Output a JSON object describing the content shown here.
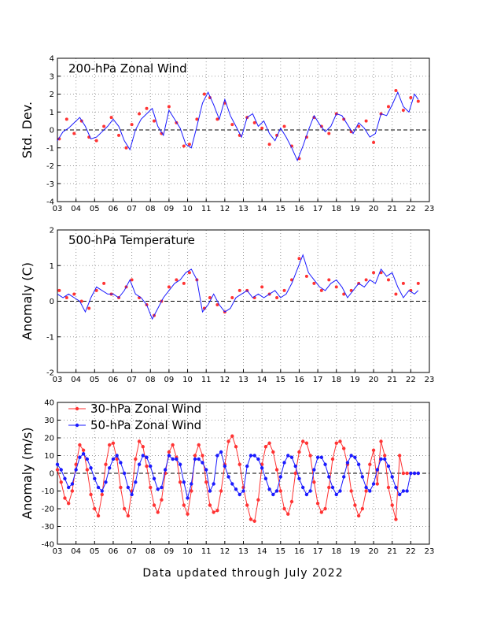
{
  "footer": "Data updated through July 2022",
  "chart_data": [
    {
      "type": "scatter",
      "title": "200-hPa Zonal Wind",
      "ylabel": "Std. Dev.",
      "xlim": [
        2003,
        2023
      ],
      "ylim": [
        -4,
        4
      ],
      "xticks": [
        "03",
        "04",
        "05",
        "06",
        "07",
        "08",
        "09",
        "10",
        "11",
        "12",
        "13",
        "14",
        "15",
        "16",
        "17",
        "18",
        "19",
        "20",
        "21",
        "22",
        "23"
      ],
      "yticks": [
        -4,
        -3,
        -2,
        -1,
        0,
        1,
        2,
        3,
        4
      ],
      "grid": true,
      "zero_line": "dashed",
      "series": [
        {
          "kind": "points",
          "color": "#ff3333",
          "x": [
            2003.1,
            2003.5,
            2003.9,
            2004.3,
            2004.7,
            2005.1,
            2005.5,
            2005.9,
            2006.3,
            2006.7,
            2007.0,
            2007.4,
            2007.8,
            2008.2,
            2008.6,
            2009.0,
            2009.4,
            2009.8,
            2010.1,
            2010.5,
            2010.9,
            2011.2,
            2011.6,
            2012.0,
            2012.4,
            2012.8,
            2013.2,
            2013.6,
            2014.0,
            2014.4,
            2014.8,
            2015.2,
            2015.6,
            2016.0,
            2016.4,
            2016.8,
            2017.2,
            2017.6,
            2018.0,
            2018.4,
            2018.8,
            2019.2,
            2019.6,
            2020.0,
            2020.4,
            2020.8,
            2021.2,
            2021.6,
            2022.0,
            2022.4
          ],
          "y": [
            -0.5,
            0.6,
            -0.2,
            0.5,
            -0.4,
            -0.6,
            0.2,
            0.7,
            -0.3,
            -1.0,
            0.3,
            0.9,
            1.2,
            0.5,
            -0.2,
            1.3,
            0.4,
            -0.9,
            -0.8,
            0.6,
            2.0,
            1.8,
            0.6,
            1.5,
            0.3,
            -0.3,
            0.7,
            0.4,
            0.1,
            -0.8,
            -0.3,
            0.2,
            -0.9,
            -1.6,
            -0.4,
            0.7,
            0.2,
            -0.2,
            0.9,
            0.6,
            -0.1,
            0.2,
            0.5,
            -0.7,
            0.9,
            1.3,
            2.2,
            1.1,
            1.8,
            1.6
          ]
        },
        {
          "kind": "line",
          "color": "#1a1aff",
          "x": [
            2003.0,
            2003.3,
            2003.6,
            2003.9,
            2004.2,
            2004.5,
            2004.8,
            2005.1,
            2005.4,
            2005.7,
            2006.0,
            2006.3,
            2006.6,
            2006.9,
            2007.2,
            2007.5,
            2007.8,
            2008.1,
            2008.4,
            2008.7,
            2009.0,
            2009.3,
            2009.6,
            2009.9,
            2010.2,
            2010.5,
            2010.8,
            2011.1,
            2011.4,
            2011.7,
            2012.0,
            2012.3,
            2012.6,
            2012.9,
            2013.2,
            2013.5,
            2013.8,
            2014.1,
            2014.4,
            2014.7,
            2015.0,
            2015.3,
            2015.6,
            2015.9,
            2016.2,
            2016.5,
            2016.8,
            2017.1,
            2017.4,
            2017.7,
            2018.0,
            2018.3,
            2018.6,
            2018.9,
            2019.2,
            2019.5,
            2019.8,
            2020.1,
            2020.4,
            2020.7,
            2021.0,
            2021.3,
            2021.6,
            2021.9,
            2022.2,
            2022.4
          ],
          "y": [
            -0.6,
            -0.1,
            0.1,
            0.4,
            0.7,
            0.2,
            -0.5,
            -0.4,
            -0.1,
            0.2,
            0.6,
            0.2,
            -0.6,
            -1.1,
            0.0,
            0.6,
            0.9,
            1.2,
            0.2,
            -0.3,
            1.1,
            0.6,
            0.1,
            -0.8,
            -1.0,
            0.2,
            1.5,
            2.1,
            1.4,
            0.6,
            1.7,
            0.8,
            0.2,
            -0.4,
            0.7,
            0.9,
            0.2,
            0.5,
            -0.2,
            -0.6,
            0.1,
            -0.4,
            -1.0,
            -1.7,
            -0.9,
            0.0,
            0.8,
            0.3,
            -0.1,
            0.2,
            0.9,
            0.8,
            0.3,
            -0.2,
            0.4,
            0.1,
            -0.4,
            -0.2,
            0.9,
            0.8,
            1.4,
            2.1,
            1.3,
            1.0,
            2.0,
            1.7
          ]
        }
      ]
    },
    {
      "type": "scatter",
      "title": "500-hPa Temperature",
      "ylabel": "Anomaly (C)",
      "xlim": [
        2003,
        2023
      ],
      "ylim": [
        -2,
        2
      ],
      "xticks": [
        "03",
        "04",
        "05",
        "06",
        "07",
        "08",
        "09",
        "10",
        "11",
        "12",
        "13",
        "14",
        "15",
        "16",
        "17",
        "18",
        "19",
        "20",
        "21",
        "22",
        "23"
      ],
      "yticks": [
        -2,
        -1,
        0,
        1,
        2
      ],
      "grid": true,
      "zero_line": "dashed",
      "series": [
        {
          "kind": "points",
          "color": "#ff3333",
          "x": [
            2003.1,
            2003.5,
            2003.9,
            2004.3,
            2004.7,
            2005.1,
            2005.5,
            2005.9,
            2006.3,
            2006.7,
            2007.0,
            2007.4,
            2007.8,
            2008.2,
            2008.6,
            2009.0,
            2009.4,
            2009.8,
            2010.1,
            2010.5,
            2010.9,
            2011.2,
            2011.6,
            2012.0,
            2012.4,
            2012.8,
            2013.2,
            2013.6,
            2014.0,
            2014.4,
            2014.8,
            2015.2,
            2015.6,
            2016.0,
            2016.4,
            2016.8,
            2017.2,
            2017.6,
            2018.0,
            2018.4,
            2018.8,
            2019.2,
            2019.6,
            2020.0,
            2020.4,
            2020.8,
            2021.2,
            2021.6,
            2022.0,
            2022.4
          ],
          "y": [
            0.3,
            0.1,
            0.2,
            0.0,
            -0.2,
            0.3,
            0.5,
            0.2,
            0.1,
            0.4,
            0.6,
            0.1,
            -0.1,
            -0.4,
            0.0,
            0.4,
            0.6,
            0.5,
            0.8,
            0.6,
            -0.2,
            0.1,
            -0.1,
            -0.3,
            0.1,
            0.3,
            0.3,
            0.1,
            0.4,
            0.2,
            0.1,
            0.3,
            0.6,
            1.2,
            0.7,
            0.5,
            0.3,
            0.6,
            0.4,
            0.2,
            0.3,
            0.5,
            0.6,
            0.8,
            0.8,
            0.6,
            0.2,
            0.5,
            0.3,
            0.5
          ]
        },
        {
          "kind": "line",
          "color": "#1a1aff",
          "x": [
            2003.0,
            2003.3,
            2003.6,
            2003.9,
            2004.2,
            2004.5,
            2004.8,
            2005.1,
            2005.4,
            2005.7,
            2006.0,
            2006.3,
            2006.6,
            2006.9,
            2007.2,
            2007.5,
            2007.8,
            2008.1,
            2008.4,
            2008.7,
            2009.0,
            2009.3,
            2009.6,
            2009.9,
            2010.2,
            2010.5,
            2010.8,
            2011.1,
            2011.4,
            2011.7,
            2012.0,
            2012.3,
            2012.6,
            2012.9,
            2013.2,
            2013.5,
            2013.8,
            2014.1,
            2014.4,
            2014.7,
            2015.0,
            2015.3,
            2015.6,
            2015.9,
            2016.2,
            2016.5,
            2016.8,
            2017.1,
            2017.4,
            2017.7,
            2018.0,
            2018.3,
            2018.6,
            2018.9,
            2019.2,
            2019.5,
            2019.8,
            2020.1,
            2020.4,
            2020.7,
            2021.0,
            2021.3,
            2021.6,
            2021.9,
            2022.2,
            2022.4
          ],
          "y": [
            0.2,
            0.1,
            0.2,
            0.1,
            0.0,
            -0.3,
            0.1,
            0.4,
            0.3,
            0.2,
            0.2,
            0.1,
            0.3,
            0.6,
            0.2,
            0.1,
            -0.1,
            -0.5,
            -0.2,
            0.1,
            0.3,
            0.5,
            0.6,
            0.8,
            0.9,
            0.6,
            -0.3,
            -0.1,
            0.2,
            -0.1,
            -0.3,
            -0.2,
            0.1,
            0.2,
            0.3,
            0.1,
            0.2,
            0.1,
            0.2,
            0.3,
            0.1,
            0.2,
            0.5,
            0.9,
            1.3,
            0.8,
            0.6,
            0.4,
            0.3,
            0.5,
            0.6,
            0.4,
            0.1,
            0.3,
            0.5,
            0.4,
            0.6,
            0.5,
            0.9,
            0.7,
            0.8,
            0.4,
            0.1,
            0.3,
            0.2,
            0.3
          ]
        }
      ]
    },
    {
      "type": "line",
      "ylabel": "Anomaly (m/s)",
      "xlim": [
        2003,
        2023
      ],
      "ylim": [
        -40,
        40
      ],
      "xticks": [
        "03",
        "04",
        "05",
        "06",
        "07",
        "08",
        "09",
        "10",
        "11",
        "12",
        "13",
        "14",
        "15",
        "16",
        "17",
        "18",
        "19",
        "20",
        "21",
        "22",
        "23"
      ],
      "yticks": [
        -40,
        -30,
        -20,
        -10,
        0,
        10,
        20,
        30,
        40
      ],
      "grid": true,
      "zero_line": "dashed",
      "legend": "top-left",
      "series": [
        {
          "name": "30-hPa Zonal Wind",
          "color": "#ff3333",
          "x": [
            2003.0,
            2003.2,
            2003.4,
            2003.6,
            2003.8,
            2004.0,
            2004.2,
            2004.4,
            2004.6,
            2004.8,
            2005.0,
            2005.2,
            2005.4,
            2005.6,
            2005.8,
            2006.0,
            2006.2,
            2006.4,
            2006.6,
            2006.8,
            2007.0,
            2007.2,
            2007.4,
            2007.6,
            2007.8,
            2008.0,
            2008.2,
            2008.4,
            2008.6,
            2008.8,
            2009.0,
            2009.2,
            2009.4,
            2009.6,
            2009.8,
            2010.0,
            2010.2,
            2010.4,
            2010.6,
            2010.8,
            2011.0,
            2011.2,
            2011.4,
            2011.6,
            2011.8,
            2012.0,
            2012.2,
            2012.4,
            2012.6,
            2012.8,
            2013.0,
            2013.2,
            2013.4,
            2013.6,
            2013.8,
            2014.0,
            2014.2,
            2014.4,
            2014.6,
            2014.8,
            2015.0,
            2015.2,
            2015.4,
            2015.6,
            2015.8,
            2016.0,
            2016.2,
            2016.4,
            2016.6,
            2016.8,
            2017.0,
            2017.2,
            2017.4,
            2017.6,
            2017.8,
            2018.0,
            2018.2,
            2018.4,
            2018.6,
            2018.8,
            2019.0,
            2019.2,
            2019.4,
            2019.6,
            2019.8,
            2020.0,
            2020.2,
            2020.4,
            2020.6,
            2020.8,
            2021.0,
            2021.2,
            2021.4,
            2021.6,
            2021.8,
            2022.0,
            2022.2,
            2022.4
          ],
          "y": [
            2,
            -5,
            -14,
            -17,
            -10,
            5,
            16,
            13,
            2,
            -12,
            -20,
            -24,
            -12,
            5,
            16,
            17,
            8,
            -8,
            -20,
            -24,
            -10,
            8,
            18,
            15,
            4,
            -8,
            -18,
            -22,
            -15,
            0,
            12,
            16,
            9,
            -5,
            -18,
            -23,
            -10,
            10,
            16,
            10,
            -5,
            -18,
            -22,
            -21,
            -10,
            5,
            18,
            21,
            15,
            5,
            -8,
            -18,
            -26,
            -27,
            -15,
            5,
            15,
            17,
            12,
            2,
            -10,
            -20,
            -23,
            -16,
            0,
            12,
            18,
            17,
            10,
            -5,
            -17,
            -22,
            -20,
            -8,
            8,
            17,
            18,
            14,
            5,
            -10,
            -18,
            -24,
            -20,
            -10,
            5,
            13,
            -6,
            18,
            10,
            -8,
            -18,
            -26,
            10,
            0,
            0,
            0,
            0,
            0
          ]
        },
        {
          "name": "50-hPa Zonal Wind",
          "color": "#1a1aff",
          "x": [
            2003.0,
            2003.2,
            2003.4,
            2003.6,
            2003.8,
            2004.0,
            2004.2,
            2004.4,
            2004.6,
            2004.8,
            2005.0,
            2005.2,
            2005.4,
            2005.6,
            2005.8,
            2006.0,
            2006.2,
            2006.4,
            2006.6,
            2006.8,
            2007.0,
            2007.2,
            2007.4,
            2007.6,
            2007.8,
            2008.0,
            2008.2,
            2008.4,
            2008.6,
            2008.8,
            2009.0,
            2009.2,
            2009.4,
            2009.6,
            2009.8,
            2010.0,
            2010.2,
            2010.4,
            2010.6,
            2010.8,
            2011.0,
            2011.2,
            2011.4,
            2011.6,
            2011.8,
            2012.0,
            2012.2,
            2012.4,
            2012.6,
            2012.8,
            2013.0,
            2013.2,
            2013.4,
            2013.6,
            2013.8,
            2014.0,
            2014.2,
            2014.4,
            2014.6,
            2014.8,
            2015.0,
            2015.2,
            2015.4,
            2015.6,
            2015.8,
            2016.0,
            2016.2,
            2016.4,
            2016.6,
            2016.8,
            2017.0,
            2017.2,
            2017.4,
            2017.6,
            2017.8,
            2018.0,
            2018.2,
            2018.4,
            2018.6,
            2018.8,
            2019.0,
            2019.2,
            2019.4,
            2019.6,
            2019.8,
            2020.0,
            2020.2,
            2020.4,
            2020.6,
            2020.8,
            2021.0,
            2021.2,
            2021.4,
            2021.6,
            2021.8,
            2022.0,
            2022.2,
            2022.4
          ],
          "y": [
            5,
            2,
            -3,
            -8,
            -6,
            2,
            9,
            11,
            8,
            3,
            -3,
            -8,
            -10,
            -5,
            3,
            8,
            10,
            6,
            0,
            -8,
            -12,
            -5,
            5,
            10,
            9,
            4,
            -3,
            -9,
            -8,
            2,
            10,
            8,
            8,
            5,
            -5,
            -14,
            -6,
            8,
            8,
            6,
            2,
            -10,
            -6,
            10,
            12,
            4,
            -2,
            -6,
            -9,
            -12,
            -10,
            4,
            10,
            10,
            8,
            3,
            -3,
            -9,
            -12,
            -10,
            -2,
            6,
            10,
            9,
            4,
            -3,
            -8,
            -12,
            -10,
            2,
            9,
            9,
            5,
            -2,
            -8,
            -12,
            -10,
            -2,
            6,
            10,
            9,
            5,
            -2,
            -8,
            -10,
            -6,
            2,
            8,
            8,
            4,
            -2,
            -8,
            -12,
            -10,
            -10,
            0,
            0,
            0
          ]
        }
      ]
    }
  ]
}
